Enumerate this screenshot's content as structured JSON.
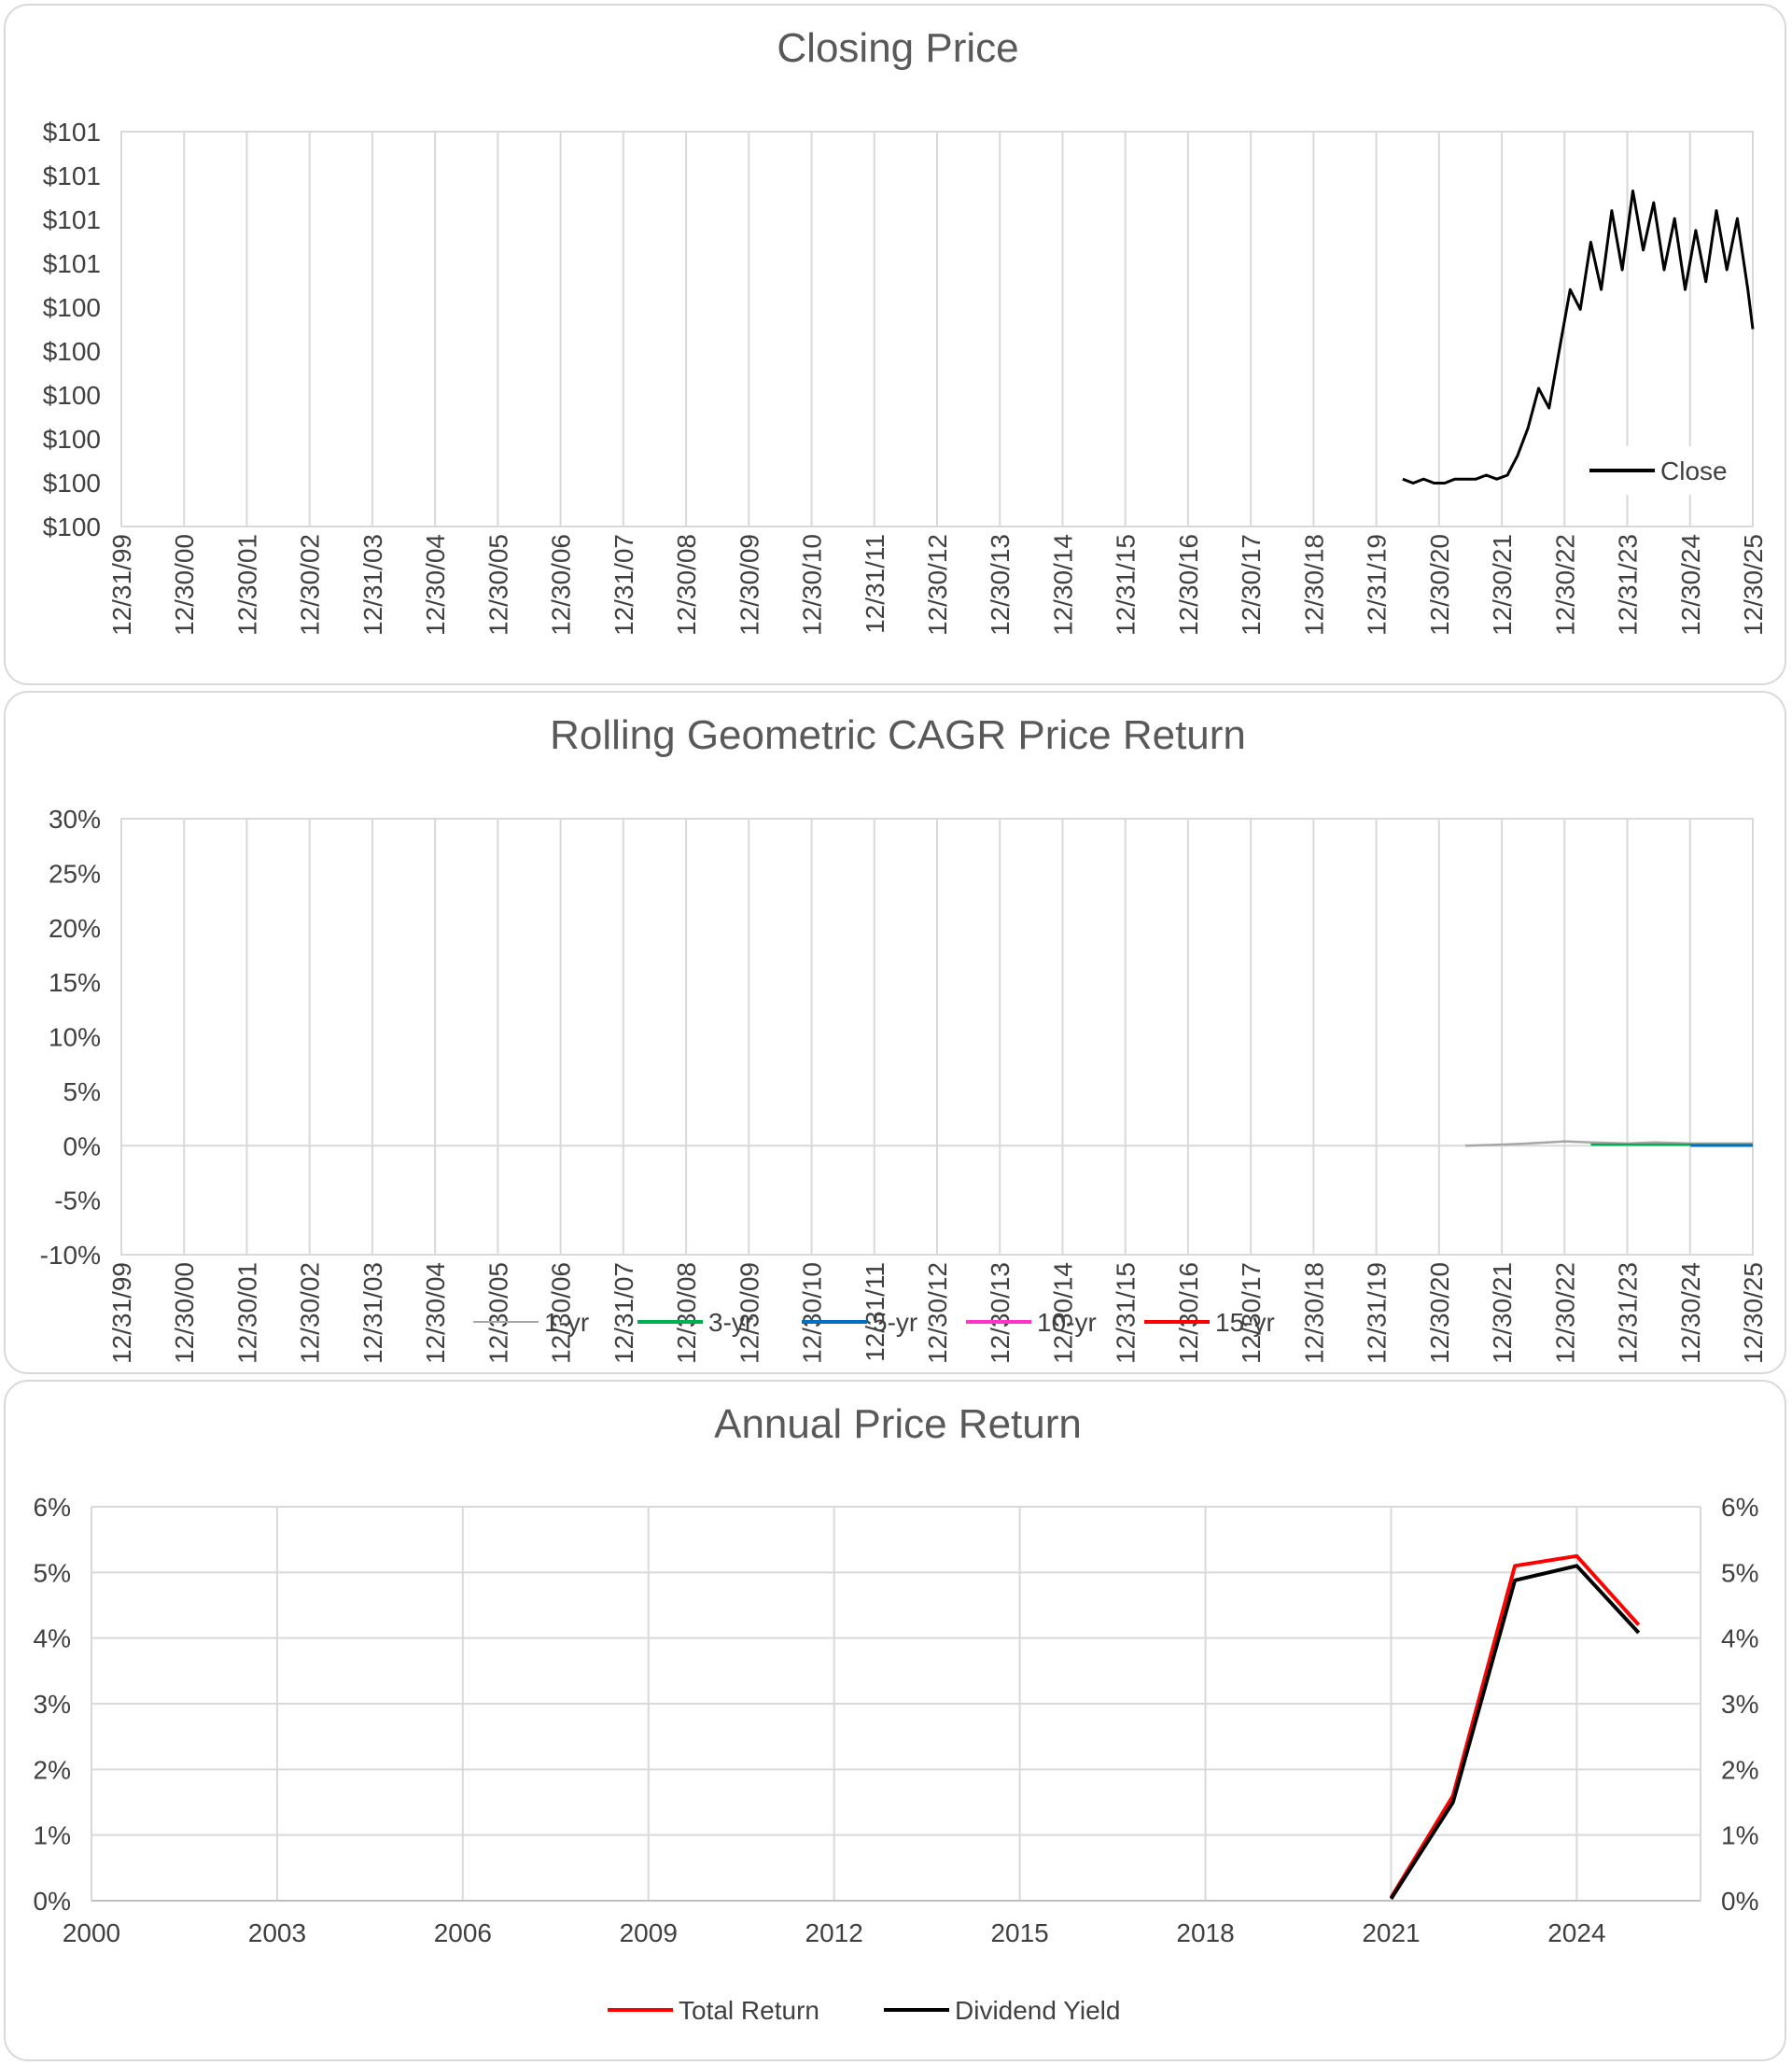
{
  "chart_data": [
    {
      "type": "line",
      "title": "Closing Price",
      "y_tick_labels": [
        "$101",
        "$101",
        "$101",
        "$101",
        "$100",
        "$100",
        "$100",
        "$100",
        "$100",
        "$100"
      ],
      "x_tick_labels": [
        "12/31/99",
        "12/30/00",
        "12/30/01",
        "12/30/02",
        "12/31/03",
        "12/30/04",
        "12/30/05",
        "12/30/06",
        "12/31/07",
        "12/30/08",
        "12/30/09",
        "12/30/10",
        "12/31/11",
        "12/30/12",
        "12/30/13",
        "12/30/14",
        "12/31/15",
        "12/30/16",
        "12/30/17",
        "12/30/18",
        "12/31/19",
        "12/30/20",
        "12/30/21",
        "12/30/22",
        "12/31/23",
        "12/30/24",
        "12/30/25"
      ],
      "x_range": [
        "1999-12-31",
        "2025-12-30"
      ],
      "ylim": [
        100.0,
        101.0
      ],
      "grid": "vertical",
      "legend": "bottom-right",
      "series": [
        {
          "name": "Close",
          "color": "#000000",
          "points": [
            [
              "2020-06-01",
              100.12
            ],
            [
              "2020-08-01",
              100.11
            ],
            [
              "2020-10-01",
              100.12
            ],
            [
              "2020-12-01",
              100.11
            ],
            [
              "2021-02-01",
              100.11
            ],
            [
              "2021-04-01",
              100.12
            ],
            [
              "2021-06-01",
              100.12
            ],
            [
              "2021-08-01",
              100.12
            ],
            [
              "2021-10-01",
              100.13
            ],
            [
              "2021-12-01",
              100.12
            ],
            [
              "2022-02-01",
              100.13
            ],
            [
              "2022-04-01",
              100.18
            ],
            [
              "2022-06-01",
              100.25
            ],
            [
              "2022-08-01",
              100.35
            ],
            [
              "2022-10-01",
              100.3
            ],
            [
              "2022-12-01",
              100.45
            ],
            [
              "2023-02-01",
              100.6
            ],
            [
              "2023-04-01",
              100.55
            ],
            [
              "2023-06-01",
              100.72
            ],
            [
              "2023-08-01",
              100.6
            ],
            [
              "2023-10-01",
              100.8
            ],
            [
              "2023-12-01",
              100.65
            ],
            [
              "2024-02-01",
              100.85
            ],
            [
              "2024-04-01",
              100.7
            ],
            [
              "2024-06-01",
              100.82
            ],
            [
              "2024-08-01",
              100.65
            ],
            [
              "2024-10-01",
              100.78
            ],
            [
              "2024-12-01",
              100.6
            ],
            [
              "2025-02-01",
              100.75
            ],
            [
              "2025-04-01",
              100.62
            ],
            [
              "2025-06-01",
              100.8
            ],
            [
              "2025-08-01",
              100.65
            ],
            [
              "2025-10-01",
              100.78
            ],
            [
              "2025-12-01",
              100.6
            ],
            [
              "2025-12-30",
              100.5
            ]
          ]
        }
      ]
    },
    {
      "type": "line",
      "title": "Rolling Geometric CAGR Price Return",
      "y_tick_labels": [
        "30%",
        "25%",
        "20%",
        "15%",
        "10%",
        "5%",
        "0%",
        "-5%",
        "-10%"
      ],
      "x_tick_labels": [
        "12/31/99",
        "12/30/00",
        "12/30/01",
        "12/30/02",
        "12/31/03",
        "12/30/04",
        "12/30/05",
        "12/30/06",
        "12/31/07",
        "12/30/08",
        "12/30/09",
        "12/30/10",
        "12/31/11",
        "12/30/12",
        "12/30/13",
        "12/30/14",
        "12/31/15",
        "12/30/16",
        "12/30/17",
        "12/30/18",
        "12/31/19",
        "12/30/20",
        "12/30/21",
        "12/30/22",
        "12/31/23",
        "12/30/24",
        "12/30/25"
      ],
      "x_range": [
        "1999-12-31",
        "2025-12-30"
      ],
      "ylim": [
        -0.1,
        0.3
      ],
      "grid": "vertical",
      "legend": "bottom",
      "series": [
        {
          "name": "1-yr",
          "color": "#a6a6a6",
          "points": [
            [
              "2021-06-01",
              0.0
            ],
            [
              "2022-01-01",
              0.001
            ],
            [
              "2022-06-01",
              0.002
            ],
            [
              "2023-01-01",
              0.004
            ],
            [
              "2023-06-01",
              0.003
            ],
            [
              "2024-01-01",
              0.002
            ],
            [
              "2024-06-01",
              0.003
            ],
            [
              "2025-01-01",
              0.002
            ],
            [
              "2025-12-30",
              0.002
            ]
          ]
        },
        {
          "name": "3-yr",
          "color": "#00b050",
          "points": [
            [
              "2023-06-01",
              0.001
            ],
            [
              "2024-01-01",
              0.001
            ],
            [
              "2024-06-01",
              0.001
            ],
            [
              "2025-01-01",
              0.001
            ],
            [
              "2025-12-30",
              0.001
            ]
          ]
        },
        {
          "name": "5-yr",
          "color": "#0070c0",
          "points": [
            [
              "2025-01-01",
              0.0
            ],
            [
              "2025-12-30",
              0.0
            ]
          ]
        },
        {
          "name": "10-yr",
          "color": "#ff33cc",
          "points": []
        },
        {
          "name": "15-yr",
          "color": "#ff0000",
          "points": []
        }
      ]
    },
    {
      "type": "line",
      "title": "Annual Price Return",
      "y_tick_labels": [
        "6%",
        "5%",
        "4%",
        "3%",
        "2%",
        "1%",
        "0%"
      ],
      "y2_tick_labels": [
        "6%",
        "5%",
        "4%",
        "3%",
        "2%",
        "1%",
        "0%"
      ],
      "x_tick_labels": [
        "2000",
        "2003",
        "2006",
        "2009",
        "2012",
        "2015",
        "2018",
        "2021",
        "2024"
      ],
      "xlim": [
        2000,
        2026
      ],
      "ylim": [
        0,
        0.06
      ],
      "grid": "both",
      "legend": "bottom",
      "series": [
        {
          "name": "Total Return",
          "color": "#ff0000",
          "points": [
            [
              2021,
              0.0005
            ],
            [
              2022,
              0.016
            ],
            [
              2023,
              0.051
            ],
            [
              2024,
              0.0525
            ],
            [
              2025,
              0.042
            ]
          ]
        },
        {
          "name": "Dividend Yield",
          "color": "#000000",
          "points": [
            [
              2021,
              0.0003
            ],
            [
              2022,
              0.015
            ],
            [
              2023,
              0.0488
            ],
            [
              2024,
              0.051
            ],
            [
              2025,
              0.0408
            ]
          ]
        }
      ]
    }
  ]
}
